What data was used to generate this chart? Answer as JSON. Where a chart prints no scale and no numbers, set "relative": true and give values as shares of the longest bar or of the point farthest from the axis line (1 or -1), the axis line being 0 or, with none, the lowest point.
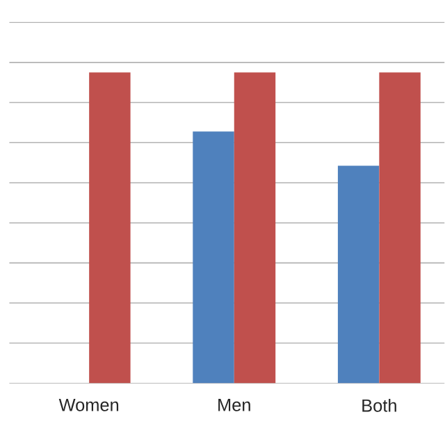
{
  "chart_data": {
    "type": "bar",
    "relative": true,
    "grid": "y",
    "categories": [
      "Women",
      "Men",
      "Both"
    ],
    "series": [
      {
        "color": "#4f81bd",
        "values": [
          null,
          0.81,
          0.7
        ]
      },
      {
        "color": "#c0504d",
        "values": [
          1,
          1,
          1
        ]
      }
    ]
  }
}
